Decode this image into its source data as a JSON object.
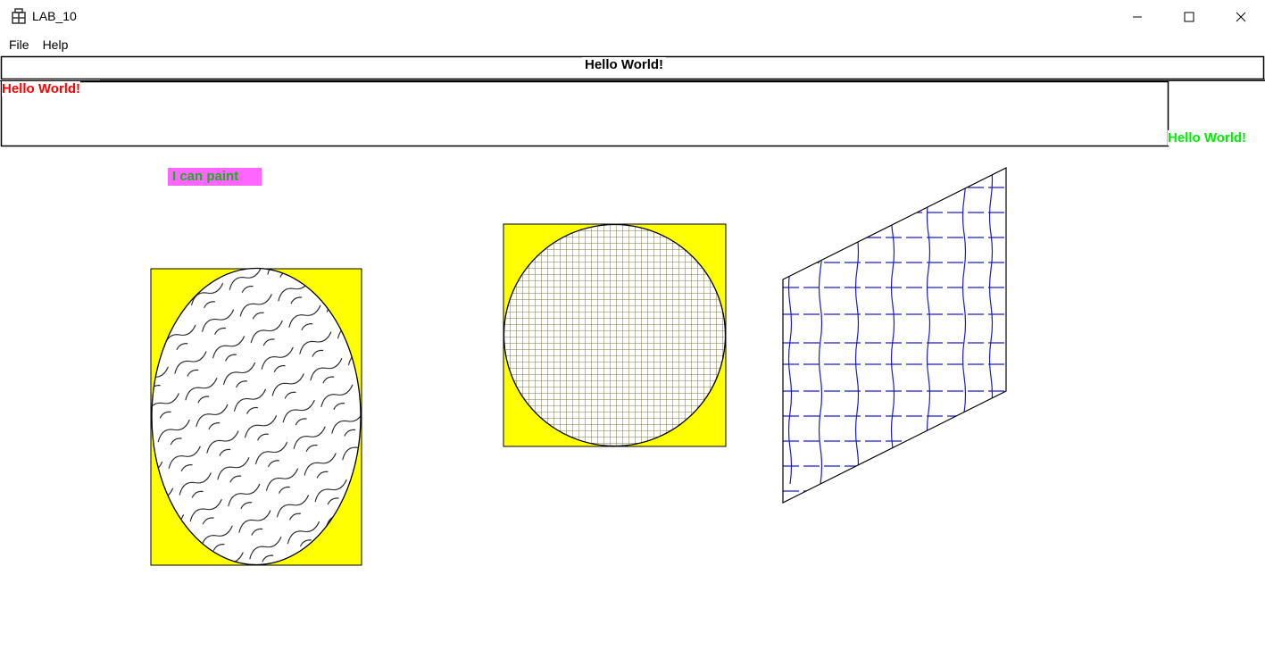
{
  "window": {
    "title": "LAB_10",
    "icon": "app-icon"
  },
  "titlebar_buttons": {
    "minimize_icon": "minimize-icon",
    "maximize_icon": "maximize-icon",
    "close_icon": "close-icon"
  },
  "menu": {
    "items": [
      {
        "label": "File"
      },
      {
        "label": "Help"
      }
    ]
  },
  "canvas": {
    "hello_black": "Hello World!",
    "hello_red": "Hello World!",
    "hello_green": "Hello World!",
    "paint_label": "I can paint",
    "colors": {
      "hello_black": "#000000",
      "hello_red": "#ff0000",
      "hello_green": "#00ee00",
      "paint_label_bg": "#ff66ff",
      "paint_label_text": "#22aa22",
      "shape_fill_yellow": "#ffff00",
      "circle_hatch": "#7a7a3a",
      "parallelogram_hatch": "#1a1acc"
    }
  }
}
